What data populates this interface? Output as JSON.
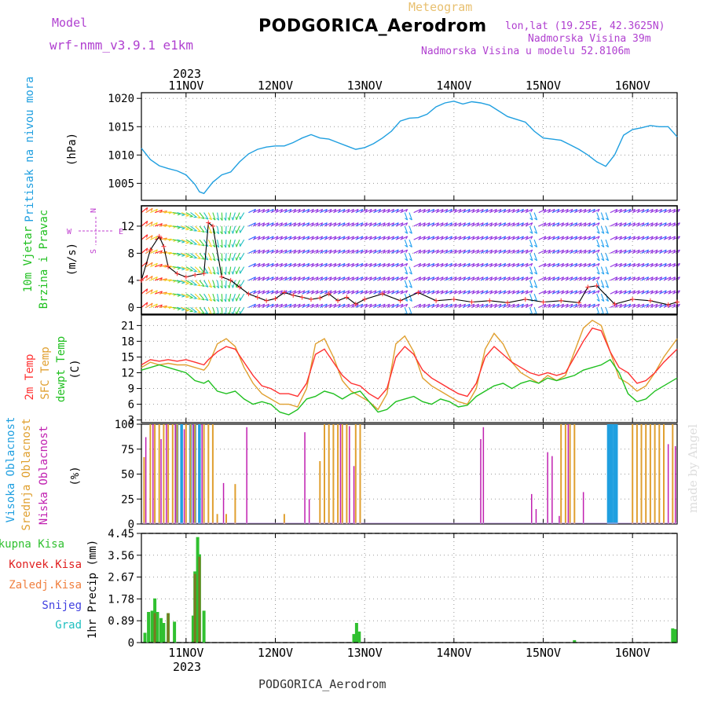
{
  "header": {
    "model_label": "Model",
    "model_name": "wrf-nmm_v3.9.1 e1km",
    "meteogram_label": "Meteogram",
    "station_title": "PODGORICA_Aerodrom",
    "lonlat": "lon,lat (19.25E, 42.3625N)",
    "altitude": "Nadmorska Visina 39m",
    "model_altitude": "Nadmorska Visina u modelu 52.8106m"
  },
  "footer": {
    "station": "PODGORICA_Aerodrom",
    "credit": "made by Angel"
  },
  "colors": {
    "pressure": "#1f9fe0",
    "t2m": "#ff3030",
    "sfc": "#e0a030",
    "dewpt": "#20c020",
    "high_cloud": "#1f9fe0",
    "mid_cloud": "#e0a030",
    "low_cloud": "#c020b0",
    "precip_total": "#30c030",
    "precip_conv": "#e02020",
    "precip_snow": "#4040e0",
    "precip_grad": "#20c0c0"
  },
  "chart_data": [
    {
      "type": "line",
      "id": "pressure",
      "ylabel_side": "Pritisak na nivou mora",
      "ylabel": "(hPa)",
      "year": "2023",
      "x_ticks": [
        "11NOV",
        "12NOV",
        "13NOV",
        "14NOV",
        "15NOV",
        "16NOV"
      ],
      "x_range": [
        10.5,
        16.5
      ],
      "y_ticks": [
        1005,
        1010,
        1015,
        1020
      ],
      "ylim": [
        1002,
        1021
      ],
      "series": [
        {
          "x": [
            10.5,
            10.6,
            10.7,
            10.8,
            10.9,
            11.0,
            11.1,
            11.15,
            11.2,
            11.3,
            11.4,
            11.5,
            11.6,
            11.7,
            11.8,
            11.9,
            12.0,
            12.1,
            12.2,
            12.3,
            12.4,
            12.5,
            12.6,
            12.7,
            12.8,
            12.9,
            13.0,
            13.1,
            13.2,
            13.3,
            13.4,
            13.5,
            13.6,
            13.7,
            13.8,
            13.9,
            14.0,
            14.1,
            14.2,
            14.3,
            14.4,
            14.5,
            14.6,
            14.7,
            14.8,
            14.9,
            15.0,
            15.1,
            15.2,
            15.3,
            15.4,
            15.5,
            15.6,
            15.7,
            15.8,
            15.9,
            16.0,
            16.1,
            16.2,
            16.3,
            16.4,
            16.5
          ],
          "y": [
            1011.2,
            1009.2,
            1008.1,
            1007.6,
            1007.2,
            1006.5,
            1004.8,
            1003.5,
            1003.2,
            1005.2,
            1006.5,
            1007.0,
            1008.8,
            1010.2,
            1011.0,
            1011.4,
            1011.6,
            1011.6,
            1012.2,
            1013.0,
            1013.6,
            1013.0,
            1012.8,
            1012.2,
            1011.6,
            1011.0,
            1011.3,
            1012.0,
            1013.0,
            1014.2,
            1016.0,
            1016.5,
            1016.6,
            1017.2,
            1018.5,
            1019.2,
            1019.5,
            1019.0,
            1019.4,
            1019.2,
            1018.8,
            1017.8,
            1016.8,
            1016.3,
            1015.8,
            1014.2,
            1013.0,
            1012.8,
            1012.6,
            1011.8,
            1011.0,
            1010.0,
            1008.8,
            1008.0,
            1010.0,
            1013.5,
            1014.5,
            1014.8,
            1015.2,
            1015.0,
            1015.0,
            1013.2
          ]
        }
      ]
    },
    {
      "type": "line",
      "id": "wind",
      "ylabel_side": "10m Vjetar Brzina i Pravac",
      "ylabel": "(m/s)",
      "compass": {
        "n": "N",
        "s": "S",
        "e": "E",
        "w": "W"
      },
      "y_ticks": [
        0,
        4,
        8,
        12
      ],
      "ylim": [
        -1,
        15
      ],
      "x_range": [
        10.5,
        16.5
      ],
      "series": [
        {
          "name": "speed",
          "x": [
            10.5,
            10.6,
            10.7,
            10.75,
            10.8,
            10.9,
            11.0,
            11.1,
            11.2,
            11.25,
            11.3,
            11.4,
            11.5,
            11.6,
            11.7,
            11.8,
            11.9,
            12.0,
            12.1,
            12.2,
            12.3,
            12.4,
            12.5,
            12.6,
            12.7,
            12.8,
            12.9,
            13.0,
            13.2,
            13.4,
            13.6,
            13.8,
            14.0,
            14.2,
            14.4,
            14.6,
            14.8,
            15.0,
            15.2,
            15.4,
            15.5,
            15.6,
            15.8,
            16.0,
            16.2,
            16.4,
            16.5
          ],
          "y": [
            4.0,
            8.5,
            10.5,
            9.0,
            6.0,
            5.0,
            4.5,
            4.8,
            5.0,
            12.5,
            12.0,
            4.5,
            4.0,
            3.0,
            2.0,
            1.5,
            1.0,
            1.3,
            2.2,
            1.8,
            1.5,
            1.2,
            1.4,
            2.0,
            1.0,
            1.5,
            0.5,
            1.2,
            2.0,
            1.0,
            2.2,
            1.0,
            1.2,
            0.8,
            1.0,
            0.7,
            1.2,
            0.8,
            1.0,
            0.7,
            3.0,
            3.2,
            0.5,
            1.2,
            1.0,
            0.4,
            0.8
          ]
        }
      ]
    },
    {
      "type": "line",
      "id": "temperature",
      "ylabel_side": [
        "2m Temp",
        "SFC Temp",
        "dewpt Temp"
      ],
      "ylabel": "(C)",
      "y_ticks": [
        3,
        6,
        9,
        12,
        15,
        18,
        21
      ],
      "ylim": [
        2.5,
        23
      ],
      "x_range": [
        10.5,
        16.5
      ],
      "series": [
        {
          "name": "2m Temp",
          "x": [
            10.5,
            10.6,
            10.7,
            10.8,
            10.9,
            11.0,
            11.1,
            11.2,
            11.25,
            11.35,
            11.45,
            11.55,
            11.65,
            11.75,
            11.85,
            11.95,
            12.05,
            12.15,
            12.25,
            12.35,
            12.45,
            12.55,
            12.65,
            12.75,
            12.85,
            12.95,
            13.05,
            13.15,
            13.25,
            13.35,
            13.45,
            13.55,
            13.65,
            13.75,
            13.85,
            13.95,
            14.05,
            14.15,
            14.25,
            14.35,
            14.45,
            14.55,
            14.65,
            14.75,
            14.85,
            14.95,
            15.05,
            15.15,
            15.25,
            15.35,
            15.45,
            15.55,
            15.65,
            15.75,
            15.85,
            15.95,
            16.05,
            16.15,
            16.25,
            16.35,
            16.5
          ],
          "y": [
            13.5,
            14.5,
            14.2,
            14.5,
            14.2,
            14.5,
            14.0,
            13.5,
            14.5,
            16.0,
            17.0,
            16.5,
            14.0,
            11.5,
            9.5,
            9.0,
            8.0,
            8.0,
            7.5,
            10.0,
            15.5,
            16.5,
            14.0,
            11.5,
            10.0,
            9.5,
            8.0,
            7.0,
            9.0,
            15.0,
            17.0,
            15.5,
            12.5,
            11.0,
            10.0,
            9.0,
            8.0,
            7.5,
            10.0,
            15.0,
            17.0,
            15.5,
            14.0,
            13.0,
            12.0,
            11.5,
            12.0,
            11.5,
            12.0,
            15.0,
            18.0,
            20.5,
            20.0,
            16.0,
            13.0,
            12.0,
            10.0,
            10.5,
            12.0,
            14.0,
            16.5
          ]
        },
        {
          "name": "SFC Temp",
          "x": [
            10.5,
            10.6,
            10.7,
            10.8,
            10.9,
            11.0,
            11.1,
            11.2,
            11.25,
            11.35,
            11.45,
            11.55,
            11.65,
            11.75,
            11.85,
            11.95,
            12.05,
            12.15,
            12.25,
            12.35,
            12.45,
            12.55,
            12.65,
            12.75,
            12.85,
            12.95,
            13.05,
            13.15,
            13.25,
            13.35,
            13.45,
            13.55,
            13.65,
            13.75,
            13.85,
            13.95,
            14.05,
            14.15,
            14.25,
            14.35,
            14.45,
            14.55,
            14.65,
            14.75,
            14.85,
            14.95,
            15.05,
            15.15,
            15.25,
            15.35,
            15.45,
            15.55,
            15.65,
            15.75,
            15.85,
            15.95,
            16.05,
            16.15,
            16.25,
            16.35,
            16.5
          ],
          "y": [
            13.0,
            14.0,
            13.5,
            13.8,
            13.5,
            13.5,
            13.0,
            12.5,
            13.5,
            17.5,
            18.5,
            17.0,
            13.0,
            10.0,
            8.0,
            7.0,
            6.0,
            6.0,
            5.5,
            9.0,
            17.5,
            18.5,
            15.0,
            10.5,
            8.5,
            7.5,
            6.5,
            5.0,
            8.0,
            17.5,
            19.0,
            16.0,
            11.0,
            9.5,
            8.5,
            7.5,
            6.5,
            6.0,
            9.0,
            16.5,
            19.5,
            17.5,
            14.0,
            12.0,
            11.0,
            10.0,
            11.5,
            10.5,
            11.5,
            16.0,
            20.5,
            22.0,
            21.0,
            16.0,
            11.0,
            10.0,
            8.5,
            9.5,
            12.0,
            15.0,
            18.5
          ]
        },
        {
          "name": "dewpt Temp",
          "x": [
            10.5,
            10.6,
            10.7,
            10.8,
            10.9,
            11.0,
            11.1,
            11.2,
            11.25,
            11.35,
            11.45,
            11.55,
            11.65,
            11.75,
            11.85,
            11.95,
            12.05,
            12.15,
            12.25,
            12.35,
            12.45,
            12.55,
            12.65,
            12.75,
            12.85,
            12.95,
            13.05,
            13.15,
            13.25,
            13.35,
            13.45,
            13.55,
            13.65,
            13.75,
            13.85,
            13.95,
            14.05,
            14.15,
            14.25,
            14.35,
            14.45,
            14.55,
            14.65,
            14.75,
            14.85,
            14.95,
            15.05,
            15.15,
            15.25,
            15.35,
            15.45,
            15.55,
            15.65,
            15.75,
            15.85,
            15.95,
            16.05,
            16.15,
            16.25,
            16.35,
            16.5
          ],
          "y": [
            12.5,
            13.0,
            13.5,
            13.0,
            12.5,
            12.0,
            10.5,
            10.0,
            10.5,
            8.5,
            8.0,
            8.5,
            7.0,
            6.0,
            6.5,
            6.0,
            4.5,
            4.0,
            5.0,
            7.0,
            7.5,
            8.5,
            8.0,
            7.0,
            8.0,
            8.5,
            6.5,
            4.5,
            5.0,
            6.5,
            7.0,
            7.5,
            6.5,
            6.0,
            7.0,
            6.5,
            5.5,
            5.8,
            7.5,
            8.5,
            9.5,
            10.0,
            9.0,
            10.0,
            10.5,
            10.0,
            11.0,
            10.5,
            11.0,
            11.5,
            12.5,
            13.0,
            13.5,
            14.5,
            12.0,
            8.0,
            6.5,
            7.0,
            8.5,
            9.5,
            11.0
          ]
        }
      ]
    },
    {
      "type": "bar",
      "id": "clouds",
      "ylabel_side": [
        "Visoka Oblacnost",
        "Srednja Oblacnost",
        "Niska Oblacnost"
      ],
      "ylabel": "(%)",
      "y_ticks": [
        0,
        25,
        50,
        75,
        100
      ],
      "ylim": [
        0,
        100
      ],
      "x_range": [
        10.5,
        16.5
      ],
      "series": [
        {
          "name": "Visoka Oblacnost",
          "x": [
            10.9,
            10.95,
            11.05,
            11.1,
            11.15,
            15.73,
            15.75,
            15.77,
            15.8,
            15.82
          ],
          "values": [
            100,
            100,
            100,
            100,
            100,
            100,
            100,
            100,
            100,
            100
          ]
        },
        {
          "name": "Srednja Oblacnost",
          "x": [
            10.53,
            10.6,
            10.65,
            10.7,
            10.75,
            10.8,
            10.85,
            10.9,
            11.0,
            11.05,
            11.1,
            11.2,
            11.25,
            11.3,
            11.35,
            11.45,
            11.55,
            12.1,
            12.5,
            12.55,
            12.6,
            12.65,
            12.7,
            12.75,
            12.8,
            12.9,
            12.95,
            15.2,
            15.25,
            15.3,
            15.35,
            16.0,
            16.05,
            16.1,
            16.15,
            16.2,
            16.25,
            16.3,
            16.35,
            16.45
          ],
          "values": [
            67,
            100,
            100,
            100,
            100,
            100,
            100,
            100,
            100,
            100,
            100,
            100,
            100,
            100,
            10,
            10,
            40,
            10,
            63,
            100,
            100,
            100,
            100,
            100,
            100,
            100,
            100,
            100,
            100,
            100,
            100,
            100,
            100,
            100,
            100,
            100,
            100,
            100,
            100,
            100
          ]
        },
        {
          "name": "Niska Oblacnost",
          "x": [
            10.55,
            10.63,
            10.72,
            10.78,
            10.88,
            10.98,
            11.08,
            11.18,
            11.42,
            11.68,
            12.33,
            12.38,
            12.73,
            12.83,
            12.88,
            14.3,
            14.33,
            14.87,
            14.92,
            15.05,
            15.1,
            15.18,
            15.28,
            15.45,
            16.4,
            16.48
          ],
          "values": [
            87,
            100,
            85,
            100,
            100,
            95,
            100,
            100,
            41,
            97,
            92,
            25,
            100,
            98,
            58,
            85,
            97,
            30,
            15,
            72,
            68,
            8,
            100,
            32,
            80,
            78
          ]
        }
      ]
    },
    {
      "type": "bar",
      "id": "precip",
      "legend": [
        "Ukupna Kisa",
        "Konvek.Kisa",
        "Zaledj.Kisa",
        "Snijeg",
        "Grad"
      ],
      "ylabel": "1hr Precip (mm)",
      "y_ticks": [
        "0",
        "0.89",
        "1.78",
        "2.67",
        "3.56",
        "4.45"
      ],
      "ylim": [
        0,
        4.45
      ],
      "x_range": [
        10.5,
        16.5
      ],
      "year": "2023",
      "x_ticks": [
        "11NOV",
        "12NOV",
        "13NOV",
        "14NOV",
        "15NOV",
        "16NOV"
      ],
      "series": [
        {
          "name": "Ukupna Kisa",
          "x": [
            10.54,
            10.58,
            10.62,
            10.65,
            10.68,
            10.72,
            10.75,
            10.8,
            10.87,
            11.08,
            11.1,
            11.13,
            11.15,
            11.2,
            12.88,
            12.91,
            12.94,
            15.35,
            16.45,
            16.48
          ],
          "values": [
            0.4,
            1.25,
            1.3,
            1.8,
            1.25,
            1.0,
            0.8,
            1.2,
            0.85,
            1.1,
            2.9,
            4.3,
            3.6,
            1.3,
            0.35,
            0.8,
            0.45,
            0.1,
            0.58,
            0.55
          ]
        },
        {
          "name": "Konvek.Kisa",
          "x": [
            10.65,
            10.8,
            11.1,
            11.15
          ],
          "values": [
            1.2,
            1.2,
            2.8,
            3.5
          ]
        }
      ]
    }
  ]
}
